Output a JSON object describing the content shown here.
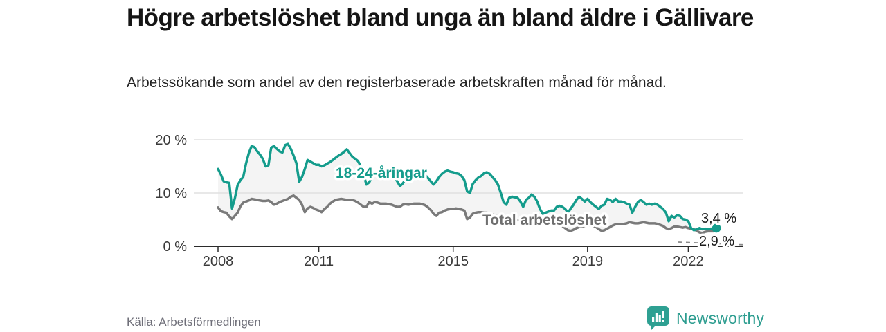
{
  "header": {
    "title": "Högre arbetslöshet bland unga än bland äldre i Gällivare",
    "subtitle": "Arbetssökande som andel av den registerbaserade arbetskraften månad för månad."
  },
  "footer": {
    "source": "Källa: Arbetsförmedlingen",
    "brand": "Newsworthy"
  },
  "colors": {
    "young_series": "#149c8c",
    "total_series": "#7a7a7a",
    "total_label": "#6f6f6f",
    "axis": "#2b2b2b",
    "gridline": "#e0e0e0",
    "between_fill": "#f4f4f4",
    "end_label_text": "#1b1b1b",
    "logo_teal": "#2ea092"
  },
  "chart_data": {
    "type": "line",
    "title": "Högre arbetslöshet bland unga än bland äldre i Gällivare",
    "subtitle": "Arbetssökande som andel av den registerbaserade arbetskraften månad för månad.",
    "source": "Källa: Arbetsförmedlingen",
    "x_unit": "monthly",
    "x_start": "2008-01",
    "x_end": "2022-11",
    "x_ticks": [
      2008,
      2011,
      2015,
      2019,
      2022
    ],
    "y_ticks": [
      0,
      10,
      20
    ],
    "y_tick_labels": [
      "0 %",
      "10 %",
      "20 %"
    ],
    "ylim": [
      0,
      21.5
    ],
    "grid": "horizontal-only",
    "legend": "inline-labels",
    "series": [
      {
        "name": "18-24-åringar",
        "color": "#149c8c",
        "end_label": "3,4 %",
        "end_value": 3.4,
        "values": [
          14.5,
          13.5,
          12.2,
          12.0,
          11.9,
          7.1,
          9.0,
          11.5,
          12.4,
          13.0,
          15.5,
          17.5,
          18.8,
          18.6,
          17.8,
          17.2,
          16.4,
          15.0,
          15.2,
          18.5,
          18.8,
          18.3,
          17.8,
          17.6,
          19.0,
          19.2,
          18.3,
          17.0,
          15.6,
          12.1,
          13.0,
          14.5,
          16.2,
          15.9,
          15.6,
          15.3,
          15.3,
          15.0,
          15.2,
          15.5,
          15.8,
          16.2,
          16.6,
          17.0,
          17.3,
          17.7,
          18.2,
          17.5,
          16.8,
          16.4,
          16.0,
          15.0,
          13.5,
          11.6,
          12.0,
          13.0,
          13.5,
          13.8,
          14.0,
          13.8,
          14.0,
          13.8,
          13.5,
          13.0,
          12.2,
          11.3,
          11.8,
          12.5,
          13.2,
          13.6,
          13.8,
          13.9,
          14.0,
          13.8,
          13.4,
          12.8,
          12.2,
          11.6,
          12.2,
          13.0,
          13.6,
          14.0,
          14.2,
          14.0,
          13.9,
          13.7,
          13.6,
          13.2,
          12.4,
          10.3,
          10.0,
          11.7,
          12.4,
          12.9,
          13.2,
          13.7,
          13.9,
          13.6,
          13.0,
          12.4,
          11.6,
          10.0,
          8.3,
          7.8,
          9.1,
          9.3,
          9.2,
          9.1,
          8.4,
          7.4,
          8.7,
          9.1,
          9.7,
          9.3,
          8.4,
          7.0,
          6.1,
          6.3,
          6.5,
          6.7,
          6.7,
          7.4,
          7.6,
          7.4,
          7.0,
          6.3,
          7.1,
          7.8,
          8.7,
          9.3,
          8.9,
          8.4,
          8.9,
          8.3,
          7.8,
          7.4,
          7.0,
          7.6,
          7.8,
          8.9,
          8.7,
          8.3,
          8.9,
          8.4,
          8.4,
          8.3,
          8.0,
          7.8,
          6.3,
          7.4,
          8.3,
          8.7,
          8.3,
          7.8,
          8.0,
          7.8,
          8.0,
          7.8,
          7.4,
          7.0,
          6.3,
          4.7,
          5.7,
          5.4,
          5.8,
          5.7,
          5.1,
          5.0,
          4.7,
          3.4,
          3.0,
          3.2,
          3.4,
          3.2,
          3.3,
          3.2,
          3.3,
          3.3,
          3.4
        ]
      },
      {
        "name": "Total arbetslöshet",
        "color": "#7a7a7a",
        "end_label": "2,9 %",
        "end_value": 2.9,
        "values": [
          7.3,
          6.6,
          6.4,
          6.3,
          5.6,
          5.1,
          5.7,
          6.3,
          7.5,
          8.2,
          8.4,
          8.6,
          8.9,
          8.8,
          8.7,
          8.6,
          8.5,
          8.5,
          8.6,
          8.3,
          7.8,
          8.0,
          8.3,
          8.5,
          8.7,
          8.9,
          9.3,
          9.5,
          9.1,
          8.7,
          7.8,
          6.4,
          7.1,
          7.4,
          7.2,
          6.9,
          6.7,
          6.4,
          7.0,
          7.4,
          8.0,
          8.4,
          8.7,
          8.8,
          8.9,
          8.8,
          8.7,
          8.7,
          8.7,
          8.5,
          8.2,
          7.8,
          7.4,
          7.4,
          8.3,
          8.0,
          8.3,
          8.2,
          8.0,
          8.0,
          8.0,
          7.9,
          7.8,
          7.6,
          7.4,
          7.4,
          7.8,
          7.9,
          7.8,
          7.9,
          8.0,
          8.0,
          8.0,
          7.9,
          7.7,
          7.3,
          6.8,
          6.1,
          5.7,
          6.3,
          6.4,
          6.7,
          6.9,
          7.0,
          7.0,
          7.1,
          7.0,
          6.9,
          6.7,
          5.1,
          5.4,
          6.1,
          6.3,
          6.4,
          6.4,
          6.3,
          6.3,
          6.2,
          6.0,
          5.8,
          5.6,
          5.3,
          5.0,
          4.8,
          5.0,
          5.1,
          5.0,
          4.9,
          4.8,
          4.7,
          4.8,
          4.9,
          4.8,
          4.6,
          4.4,
          4.2,
          4.1,
          4.2,
          4.3,
          4.3,
          4.2,
          4.1,
          4.0,
          3.8,
          3.4,
          3.0,
          2.9,
          3.1,
          3.4,
          3.6,
          3.7,
          3.8,
          3.9,
          3.9,
          3.8,
          3.6,
          3.2,
          2.9,
          3.0,
          3.3,
          3.6,
          3.9,
          4.1,
          4.2,
          4.2,
          4.2,
          4.3,
          4.5,
          4.4,
          4.3,
          4.3,
          4.4,
          4.5,
          4.4,
          4.3,
          4.3,
          4.3,
          4.2,
          4.0,
          3.8,
          3.4,
          3.2,
          3.4,
          3.7,
          3.7,
          3.6,
          3.5,
          3.6,
          3.4,
          3.3,
          3.2,
          2.9,
          2.6,
          2.5,
          2.7,
          2.8,
          2.8,
          2.8,
          2.9
        ]
      }
    ]
  }
}
